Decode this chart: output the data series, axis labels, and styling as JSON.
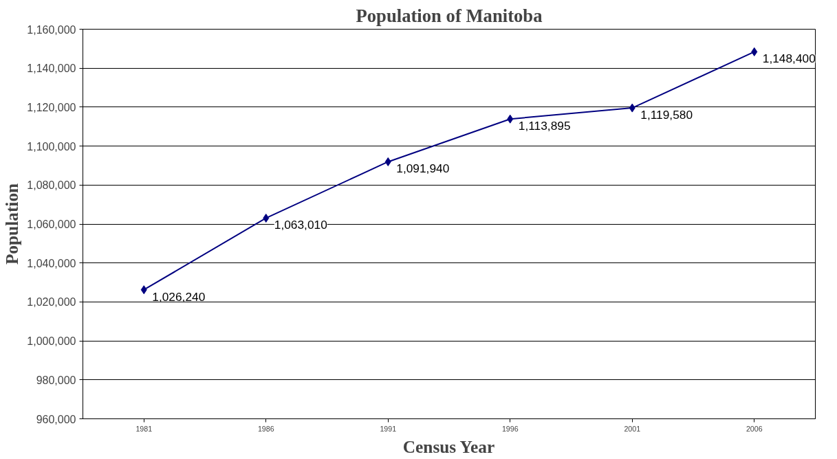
{
  "chart_data": {
    "type": "line",
    "title": "Population of Manitoba",
    "xlabel": "Census Year",
    "ylabel": "Population",
    "categories": [
      "1981",
      "1986",
      "1991",
      "1996",
      "2001",
      "2006"
    ],
    "series": [
      {
        "color": "#000080",
        "values": [
          1026240,
          1063010,
          1091940,
          1113895,
          1119580,
          1148400
        ],
        "value_labels": [
          "1,026,240",
          "1,063,010",
          "1,091,940",
          "1,113,895",
          "1,119,580",
          "1,148,400"
        ]
      }
    ],
    "ylim": [
      960000,
      1160000
    ],
    "yticks": [
      {
        "value": 960000,
        "label": "960,000"
      },
      {
        "value": 980000,
        "label": "980,000"
      },
      {
        "value": 1000000,
        "label": "1,000,000"
      },
      {
        "value": 1020000,
        "label": "1,020,000"
      },
      {
        "value": 1040000,
        "label": "1,040,000"
      },
      {
        "value": 1060000,
        "label": "1,060,000"
      },
      {
        "value": 1080000,
        "label": "1,080,000"
      },
      {
        "value": 1100000,
        "label": "1,100,000"
      },
      {
        "value": 1120000,
        "label": "1,120,000"
      },
      {
        "value": 1140000,
        "label": "1,140,000"
      },
      {
        "value": 1160000,
        "label": "1,160,000"
      }
    ],
    "grid": "y",
    "marker": "diamond",
    "line_style": "solid"
  }
}
